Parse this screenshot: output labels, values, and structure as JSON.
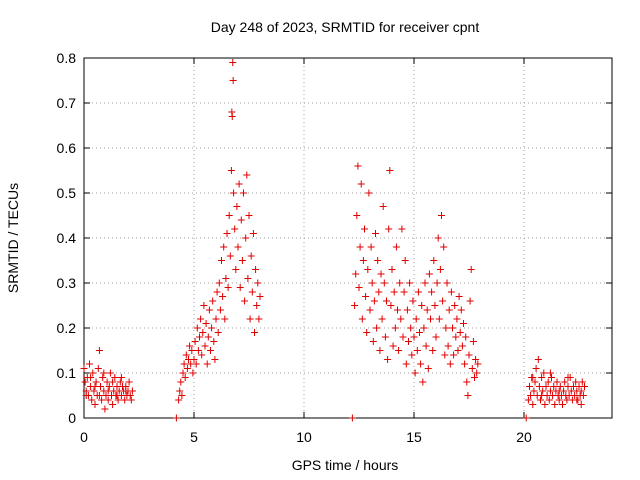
{
  "chart_data": {
    "type": "scatter",
    "title": "Day 248 of 2023, SRMTID for receiver cpnt",
    "xlabel": "GPS time / hours",
    "ylabel": "SRMTID / TECUs",
    "xlim": [
      0,
      24
    ],
    "ylim": [
      0,
      0.8
    ],
    "xticks": [
      0,
      5,
      10,
      15,
      20
    ],
    "yticks": [
      0,
      0.1,
      0.2,
      0.3,
      0.4,
      0.5,
      0.6,
      0.7,
      0.8
    ],
    "xtick_labels": [
      "0",
      "5",
      "10",
      "15",
      "20"
    ],
    "ytick_labels": [
      "0",
      "0.1",
      "0.2",
      "0.3",
      "0.4",
      "0.5",
      "0.6",
      "0.7",
      "0.8"
    ],
    "grid": true,
    "marker": "+",
    "color": "#e00000",
    "series": [
      {
        "name": "SRMTID",
        "points": [
          [
            0.0,
            0.11
          ],
          [
            0.05,
            0.08
          ],
          [
            0.1,
            0.06
          ],
          [
            0.15,
            0.09
          ],
          [
            0.2,
            0.05
          ],
          [
            0.25,
            0.12
          ],
          [
            0.3,
            0.07
          ],
          [
            0.35,
            0.04
          ],
          [
            0.4,
            0.1
          ],
          [
            0.45,
            0.06
          ],
          [
            0.5,
            0.03
          ],
          [
            0.55,
            0.08
          ],
          [
            0.6,
            0.05
          ],
          [
            0.65,
            0.11
          ],
          [
            0.7,
            0.15
          ],
          [
            0.75,
            0.07
          ],
          [
            0.8,
            0.04
          ],
          [
            0.85,
            0.09
          ],
          [
            0.9,
            0.06
          ],
          [
            0.95,
            0.02
          ],
          [
            1.0,
            0.05
          ],
          [
            1.05,
            0.08
          ],
          [
            1.1,
            0.04
          ],
          [
            1.15,
            0.07
          ],
          [
            1.2,
            0.1
          ],
          [
            1.25,
            0.05
          ],
          [
            1.3,
            0.03
          ],
          [
            1.35,
            0.06
          ],
          [
            1.4,
            0.09
          ],
          [
            1.45,
            0.05
          ],
          [
            1.5,
            0.07
          ],
          [
            1.55,
            0.04
          ],
          [
            1.6,
            0.06
          ],
          [
            1.65,
            0.08
          ],
          [
            1.7,
            0.05
          ],
          [
            1.75,
            0.07
          ],
          [
            1.8,
            0.06
          ],
          [
            1.85,
            0.04
          ],
          [
            1.9,
            0.07
          ],
          [
            1.95,
            0.05
          ],
          [
            2.0,
            0.06
          ],
          [
            2.05,
            0.08
          ],
          [
            2.1,
            0.05
          ],
          [
            2.15,
            0.04
          ],
          [
            2.2,
            0.06
          ],
          [
            0.1,
            0.05
          ],
          [
            0.3,
            0.09
          ],
          [
            0.5,
            0.07
          ],
          [
            0.7,
            0.05
          ],
          [
            0.9,
            0.1
          ],
          [
            1.1,
            0.06
          ],
          [
            1.3,
            0.08
          ],
          [
            1.5,
            0.05
          ],
          [
            1.7,
            0.09
          ],
          [
            1.9,
            0.06
          ],
          [
            4.2,
            0.0
          ],
          [
            4.3,
            0.04
          ],
          [
            4.35,
            0.06
          ],
          [
            4.4,
            0.08
          ],
          [
            4.45,
            0.05
          ],
          [
            4.5,
            0.1
          ],
          [
            4.55,
            0.12
          ],
          [
            4.6,
            0.09
          ],
          [
            4.65,
            0.14
          ],
          [
            4.7,
            0.11
          ],
          [
            4.75,
            0.13
          ],
          [
            4.8,
            0.16
          ],
          [
            4.85,
            0.12
          ],
          [
            4.9,
            0.15
          ],
          [
            4.95,
            0.1
          ],
          [
            5.0,
            0.13
          ],
          [
            5.05,
            0.17
          ],
          [
            5.1,
            0.12
          ],
          [
            5.15,
            0.2
          ],
          [
            5.2,
            0.15
          ],
          [
            5.25,
            0.18
          ],
          [
            5.3,
            0.22
          ],
          [
            5.35,
            0.14
          ],
          [
            5.4,
            0.19
          ],
          [
            5.45,
            0.25
          ],
          [
            5.5,
            0.16
          ],
          [
            5.55,
            0.21
          ],
          [
            5.6,
            0.12
          ],
          [
            5.65,
            0.18
          ],
          [
            5.7,
            0.24
          ],
          [
            5.75,
            0.15
          ],
          [
            5.8,
            0.2
          ],
          [
            5.85,
            0.26
          ],
          [
            5.9,
            0.17
          ],
          [
            5.95,
            0.13
          ],
          [
            6.0,
            0.22
          ],
          [
            6.05,
            0.28
          ],
          [
            6.1,
            0.19
          ],
          [
            6.15,
            0.3
          ],
          [
            6.2,
            0.24
          ],
          [
            6.25,
            0.35
          ],
          [
            6.3,
            0.27
          ],
          [
            6.35,
            0.38
          ],
          [
            6.4,
            0.22
          ],
          [
            6.45,
            0.31
          ],
          [
            6.5,
            0.41
          ],
          [
            6.55,
            0.29
          ],
          [
            6.6,
            0.45
          ],
          [
            6.65,
            0.36
          ],
          [
            6.7,
            0.55
          ],
          [
            6.72,
            0.68
          ],
          [
            6.74,
            0.67
          ],
          [
            6.76,
            0.79
          ],
          [
            6.78,
            0.75
          ],
          [
            6.8,
            0.5
          ],
          [
            6.85,
            0.42
          ],
          [
            6.9,
            0.33
          ],
          [
            6.95,
            0.47
          ],
          [
            7.0,
            0.38
          ],
          [
            7.05,
            0.52
          ],
          [
            7.1,
            0.29
          ],
          [
            7.15,
            0.44
          ],
          [
            7.2,
            0.35
          ],
          [
            7.25,
            0.5
          ],
          [
            7.3,
            0.26
          ],
          [
            7.35,
            0.4
          ],
          [
            7.4,
            0.54
          ],
          [
            7.45,
            0.31
          ],
          [
            7.5,
            0.45
          ],
          [
            7.55,
            0.22
          ],
          [
            7.6,
            0.36
          ],
          [
            7.65,
            0.28
          ],
          [
            7.7,
            0.41
          ],
          [
            7.75,
            0.19
          ],
          [
            7.8,
            0.33
          ],
          [
            7.85,
            0.25
          ],
          [
            7.9,
            0.3
          ],
          [
            7.95,
            0.22
          ],
          [
            8.0,
            0.27
          ],
          [
            12.2,
            0.0
          ],
          [
            12.3,
            0.25
          ],
          [
            12.35,
            0.32
          ],
          [
            12.4,
            0.45
          ],
          [
            12.45,
            0.56
          ],
          [
            12.5,
            0.29
          ],
          [
            12.55,
            0.38
          ],
          [
            12.6,
            0.52
          ],
          [
            12.65,
            0.22
          ],
          [
            12.7,
            0.35
          ],
          [
            12.75,
            0.42
          ],
          [
            12.8,
            0.27
          ],
          [
            12.85,
            0.19
          ],
          [
            12.9,
            0.33
          ],
          [
            12.95,
            0.5
          ],
          [
            13.0,
            0.24
          ],
          [
            13.05,
            0.38
          ],
          [
            13.1,
            0.3
          ],
          [
            13.15,
            0.17
          ],
          [
            13.2,
            0.26
          ],
          [
            13.25,
            0.41
          ],
          [
            13.3,
            0.2
          ],
          [
            13.35,
            0.35
          ],
          [
            13.4,
            0.28
          ],
          [
            13.45,
            0.15
          ],
          [
            13.5,
            0.32
          ],
          [
            13.55,
            0.22
          ],
          [
            13.6,
            0.47
          ],
          [
            13.65,
            0.3
          ],
          [
            13.7,
            0.18
          ],
          [
            13.75,
            0.26
          ],
          [
            13.8,
            0.13
          ],
          [
            13.85,
            0.42
          ],
          [
            13.9,
            0.55
          ],
          [
            13.95,
            0.25
          ],
          [
            14.0,
            0.33
          ],
          [
            14.05,
            0.16
          ],
          [
            14.1,
            0.28
          ],
          [
            14.15,
            0.2
          ],
          [
            14.2,
            0.38
          ],
          [
            14.25,
            0.24
          ],
          [
            14.3,
            0.15
          ],
          [
            14.35,
            0.3
          ],
          [
            14.4,
            0.22
          ],
          [
            14.45,
            0.42
          ],
          [
            14.5,
            0.18
          ],
          [
            14.55,
            0.28
          ],
          [
            14.6,
            0.35
          ],
          [
            14.65,
            0.12
          ],
          [
            14.7,
            0.24
          ],
          [
            14.75,
            0.17
          ],
          [
            14.8,
            0.3
          ],
          [
            14.85,
            0.2
          ],
          [
            14.9,
            0.14
          ],
          [
            14.95,
            0.26
          ],
          [
            15.0,
            0.18
          ],
          [
            15.05,
            0.1
          ],
          [
            15.1,
            0.22
          ],
          [
            15.15,
            0.15
          ],
          [
            15.2,
            0.28
          ],
          [
            15.25,
            0.19
          ],
          [
            15.3,
            0.12
          ],
          [
            15.35,
            0.25
          ],
          [
            15.4,
            0.08
          ],
          [
            15.45,
            0.2
          ],
          [
            15.5,
            0.3
          ],
          [
            15.55,
            0.16
          ],
          [
            15.6,
            0.24
          ],
          [
            15.65,
            0.11
          ],
          [
            15.7,
            0.32
          ],
          [
            15.75,
            0.22
          ],
          [
            15.8,
            0.28
          ],
          [
            15.85,
            0.15
          ],
          [
            15.9,
            0.35
          ],
          [
            15.95,
            0.25
          ],
          [
            16.0,
            0.18
          ],
          [
            16.05,
            0.3
          ],
          [
            16.1,
            0.4
          ],
          [
            16.15,
            0.22
          ],
          [
            16.2,
            0.33
          ],
          [
            16.25,
            0.45
          ],
          [
            16.3,
            0.26
          ],
          [
            16.35,
            0.38
          ],
          [
            16.4,
            0.14
          ],
          [
            16.45,
            0.2
          ],
          [
            16.5,
            0.3
          ],
          [
            16.55,
            0.16
          ],
          [
            16.6,
            0.24
          ],
          [
            16.65,
            0.12
          ],
          [
            16.7,
            0.28
          ],
          [
            16.75,
            0.2
          ],
          [
            16.8,
            0.14
          ],
          [
            16.85,
            0.25
          ],
          [
            16.9,
            0.18
          ],
          [
            16.95,
            0.22
          ],
          [
            17.0,
            0.15
          ],
          [
            17.05,
            0.27
          ],
          [
            17.1,
            0.19
          ],
          [
            17.15,
            0.24
          ],
          [
            17.2,
            0.16
          ],
          [
            17.25,
            0.21
          ],
          [
            17.3,
            0.12
          ],
          [
            17.35,
            0.18
          ],
          [
            17.4,
            0.08
          ],
          [
            17.45,
            0.05
          ],
          [
            17.5,
            0.14
          ],
          [
            17.55,
            0.26
          ],
          [
            17.6,
            0.33
          ],
          [
            17.65,
            0.11
          ],
          [
            17.7,
            0.17
          ],
          [
            17.75,
            0.09
          ],
          [
            17.8,
            0.13
          ],
          [
            17.85,
            0.1
          ],
          [
            17.9,
            0.12
          ],
          [
            20.1,
            0.0
          ],
          [
            20.2,
            0.04
          ],
          [
            20.25,
            0.07
          ],
          [
            20.3,
            0.05
          ],
          [
            20.35,
            0.09
          ],
          [
            20.4,
            0.03
          ],
          [
            20.45,
            0.06
          ],
          [
            20.5,
            0.08
          ],
          [
            20.55,
            0.11
          ],
          [
            20.6,
            0.05
          ],
          [
            20.65,
            0.13
          ],
          [
            20.7,
            0.07
          ],
          [
            20.75,
            0.04
          ],
          [
            20.8,
            0.09
          ],
          [
            20.85,
            0.06
          ],
          [
            20.9,
            0.1
          ],
          [
            20.95,
            0.03
          ],
          [
            21.0,
            0.07
          ],
          [
            21.05,
            0.05
          ],
          [
            21.1,
            0.08
          ],
          [
            21.15,
            0.04
          ],
          [
            21.2,
            0.06
          ],
          [
            21.25,
            0.09
          ],
          [
            21.3,
            0.05
          ],
          [
            21.35,
            0.07
          ],
          [
            21.4,
            0.03
          ],
          [
            21.45,
            0.06
          ],
          [
            21.5,
            0.08
          ],
          [
            21.55,
            0.05
          ],
          [
            21.6,
            0.04
          ],
          [
            21.65,
            0.07
          ],
          [
            21.7,
            0.05
          ],
          [
            21.75,
            0.03
          ],
          [
            21.8,
            0.06
          ],
          [
            21.85,
            0.08
          ],
          [
            21.9,
            0.05
          ],
          [
            21.95,
            0.04
          ],
          [
            22.0,
            0.07
          ],
          [
            22.05,
            0.05
          ],
          [
            22.1,
            0.09
          ],
          [
            22.15,
            0.06
          ],
          [
            22.2,
            0.04
          ],
          [
            22.25,
            0.07
          ],
          [
            22.3,
            0.05
          ],
          [
            22.35,
            0.08
          ],
          [
            22.4,
            0.06
          ],
          [
            22.45,
            0.04
          ],
          [
            22.5,
            0.07
          ],
          [
            22.55,
            0.05
          ],
          [
            22.6,
            0.06
          ],
          [
            22.65,
            0.08
          ],
          [
            22.7,
            0.05
          ],
          [
            22.75,
            0.07
          ],
          [
            20.4,
            0.09
          ],
          [
            20.8,
            0.05
          ],
          [
            21.2,
            0.1
          ],
          [
            21.6,
            0.06
          ],
          [
            22.0,
            0.09
          ],
          [
            22.4,
            0.04
          ],
          [
            22.6,
            0.03
          ]
        ]
      }
    ]
  }
}
